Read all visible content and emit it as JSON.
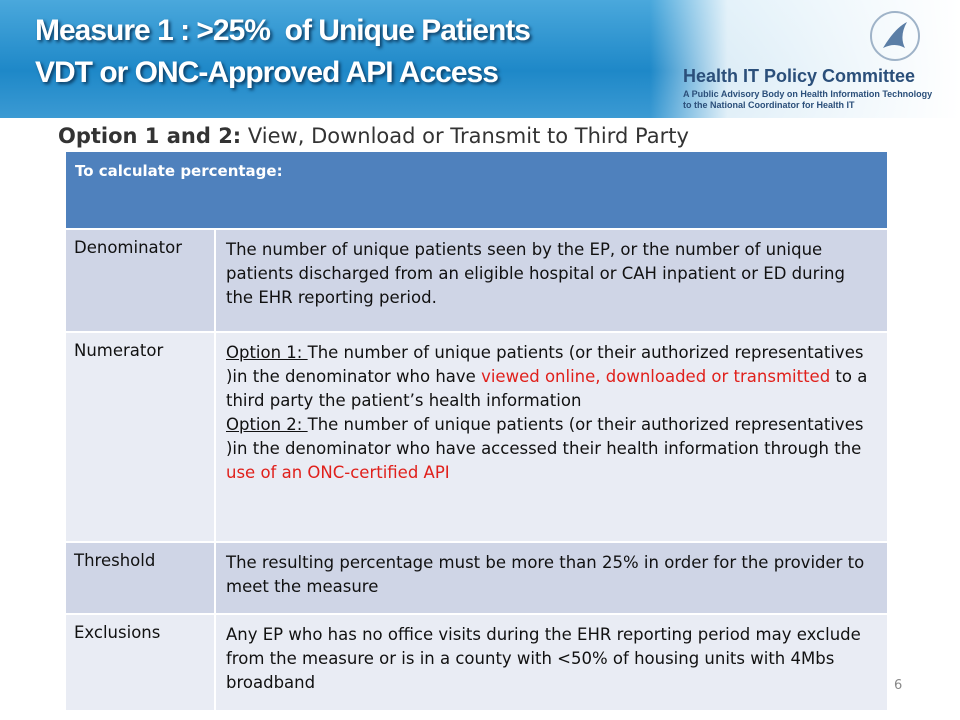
{
  "header": {
    "title_lines": [
      "Measure 1 : >25%  of Unique Patients",
      "VDT or ONC-Approved API Access"
    ],
    "logo": {
      "name": "Health IT Policy Committee",
      "tagline_lines": [
        "A Public Advisory Body on Health Information Technology",
        "to the National Coordinator for Health IT"
      ]
    }
  },
  "subtitle": {
    "bold": "Option 1 and 2:",
    "rest": " View, Download or Transmit to Third Party"
  },
  "table": {
    "header": "To calculate percentage:",
    "rows": [
      {
        "label": "Denominator",
        "paragraphs": [
          [
            {
              "text": "The number of unique patients seen by the EP, or the number of unique patients discharged from an eligible hospital or CAH inpatient or ED during the EHR reporting period."
            }
          ]
        ]
      },
      {
        "label": "Numerator",
        "paragraphs": [
          [
            {
              "text": "Option 1: ",
              "underline": true
            },
            {
              "text": "The number of unique patients (or their authorized representatives )in the denominator who have "
            },
            {
              "text": "viewed online, downloaded or transmitted",
              "red": true
            },
            {
              "text": " to a third party the patient’s health information"
            }
          ],
          [
            {
              "text": "Option 2: ",
              "underline": true
            },
            {
              "text": "The number of unique patients (or their authorized representatives )in the denominator who have accessed their health information through the "
            },
            {
              "text": "use of an ONC-certified API",
              "red": true
            }
          ]
        ]
      },
      {
        "label": "Threshold",
        "paragraphs": [
          [
            {
              "text": "The resulting percentage must be more than 25% in order for the provider to meet the measure"
            }
          ]
        ]
      },
      {
        "label": "Exclusions",
        "paragraphs": [
          [
            {
              "text": "Any EP who has no office visits during the EHR reporting period may exclude from the measure or is in a county with <50% of housing units with 4Mbs broadband"
            }
          ]
        ]
      }
    ]
  },
  "page_number": "6"
}
